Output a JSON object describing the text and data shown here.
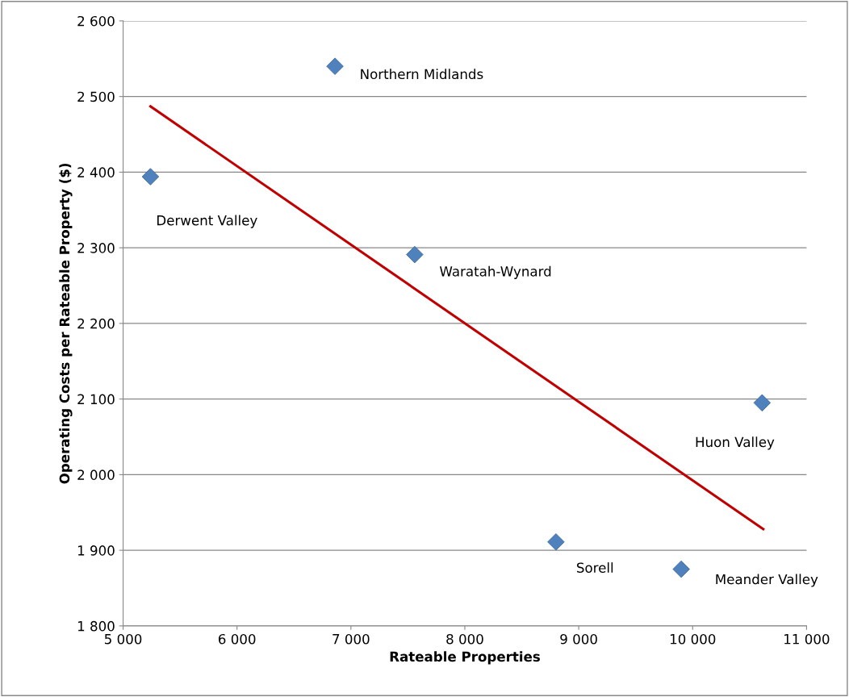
{
  "chart_data": {
    "type": "scatter",
    "xlabel": "Rateable Properties",
    "ylabel": "Operating Costs per Rateable Property ($)",
    "xlim": [
      5000,
      11000
    ],
    "ylim": [
      1800,
      2600
    ],
    "xticks": [
      {
        "value": 5000,
        "label": "5 000"
      },
      {
        "value": 6000,
        "label": "6 000"
      },
      {
        "value": 7000,
        "label": "7 000"
      },
      {
        "value": 8000,
        "label": "8 000"
      },
      {
        "value": 9000,
        "label": "9 000"
      },
      {
        "value": 10000,
        "label": "10 000"
      },
      {
        "value": 11000,
        "label": "11 000"
      }
    ],
    "yticks": [
      {
        "value": 1800,
        "label": "1 800"
      },
      {
        "value": 1900,
        "label": "1 900"
      },
      {
        "value": 2000,
        "label": "2 000"
      },
      {
        "value": 2100,
        "label": "2 100"
      },
      {
        "value": 2200,
        "label": "2 200"
      },
      {
        "value": 2300,
        "label": "2 300"
      },
      {
        "value": 2400,
        "label": "2 400"
      },
      {
        "value": 2500,
        "label": "2 500"
      },
      {
        "value": 2600,
        "label": "2 600"
      }
    ],
    "grid": "y",
    "marker": "diamond",
    "series": [
      {
        "color": "#4f81bd",
        "x": [
          6860,
          5240,
          7560,
          10610,
          8800,
          9900
        ],
        "values": [
          2540,
          2394,
          2291,
          2095,
          1911,
          1875
        ]
      },
      {
        "type": "line",
        "color": "#c00000",
        "x": [
          5240,
          10620
        ],
        "values": [
          2487,
          1928
        ],
        "marker": "none",
        "line_style": "solid"
      }
    ],
    "annotations": [
      {
        "text": "Northern Midlands",
        "x": 6860,
        "y": 2540
      },
      {
        "text": "Derwent Valley",
        "x": 5240,
        "y": 2394
      },
      {
        "text": "Waratah-Wynard",
        "x": 7560,
        "y": 2291
      },
      {
        "text": "Huon Valley",
        "x": 10610,
        "y": 2095
      },
      {
        "text": "Sorell",
        "x": 8800,
        "y": 1911
      },
      {
        "text": "Meander Valley",
        "x": 9900,
        "y": 1875
      }
    ]
  }
}
